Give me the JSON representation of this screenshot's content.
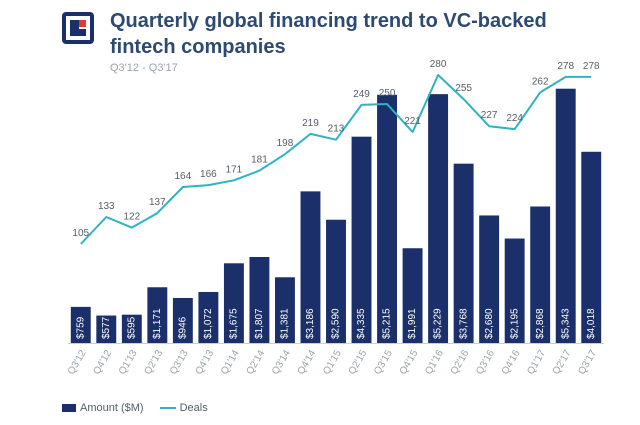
{
  "header": {
    "title": "Quarterly global financing trend to VC-backed fintech companies",
    "subtitle": "Q3'12 - Q3'17"
  },
  "logo": {
    "icon": "cb-insights-logo-icon"
  },
  "legend": {
    "amount_label": "Amount ($M)",
    "deals_label": "Deals"
  },
  "colors": {
    "bar": "#1b2f6a",
    "line": "#2fb3c2",
    "bar_text": "#ffffff",
    "title": "#2d4a73",
    "logo_bg": "#1b2f6a",
    "logo_accent": "#e03a2f"
  },
  "chart_data": {
    "type": "bar+line",
    "title": "Quarterly global financing trend to VC-backed fintech companies",
    "subtitle": "Q3'12 - Q3'17",
    "categories": [
      "Q3'12",
      "Q4'12",
      "Q1'13",
      "Q2'13",
      "Q3'13",
      "Q4'13",
      "Q1'14",
      "Q2'14",
      "Q3'14",
      "Q4'14",
      "Q1'15",
      "Q2'15",
      "Q3'15",
      "Q4'15",
      "Q1'16",
      "Q2'16",
      "Q3'16",
      "Q4'16",
      "Q1'17",
      "Q2'17",
      "Q3'17"
    ],
    "series": [
      {
        "name": "Amount ($M)",
        "type": "bar",
        "values": [
          759,
          577,
          595,
          1171,
          946,
          1072,
          1675,
          1807,
          1381,
          3186,
          2590,
          4335,
          5215,
          1991,
          5229,
          3768,
          2680,
          2195,
          2868,
          5343,
          4018
        ],
        "labels": [
          "$759",
          "$577",
          "$595",
          "$1,171",
          "$946",
          "$1,072",
          "$1,675",
          "$1,807",
          "$1,381",
          "$3,186",
          "$2,590",
          "$4,335",
          "$5,215",
          "$1,991",
          "$5,229",
          "$3,768",
          "$2,680",
          "$2,195",
          "$2,868",
          "$5,343",
          "$4,018"
        ]
      },
      {
        "name": "Deals",
        "type": "line",
        "values": [
          105,
          133,
          122,
          137,
          164,
          166,
          171,
          181,
          198,
          219,
          213,
          249,
          250,
          221,
          280,
          255,
          227,
          224,
          262,
          278,
          278
        ],
        "labels": [
          "105",
          "133",
          "122",
          "137",
          "164",
          "166",
          "171",
          "181",
          "198",
          "219",
          "213",
          "249",
          "250",
          "221",
          "280",
          "255",
          "227",
          "224",
          "262",
          "278",
          "278"
        ]
      }
    ],
    "legend_position": "bottom-left",
    "grid": false
  }
}
